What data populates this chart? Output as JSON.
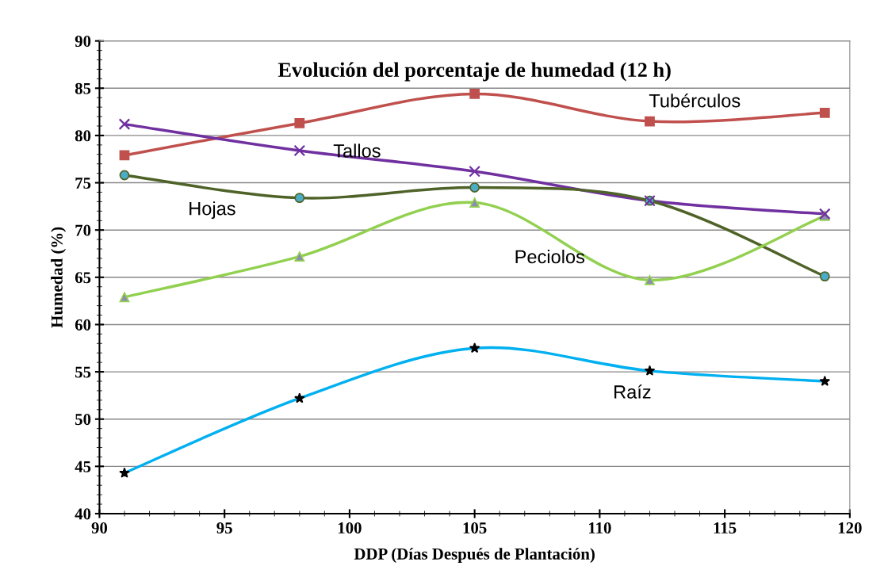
{
  "chart_data": {
    "type": "line",
    "title": "Evolución del porcentaje de humedad (12 h)",
    "xlabel": "DDP (Días Después de Plantación)",
    "ylabel": "Humedad (%)",
    "x": [
      91,
      98,
      105,
      112,
      119
    ],
    "series": [
      {
        "name": "Tubérculos",
        "color": "#c0504d",
        "marker": "square",
        "values": [
          77.9,
          81.3,
          84.4,
          81.5,
          82.4
        ]
      },
      {
        "name": "Tallos",
        "color": "#7030a0",
        "marker": "cross",
        "values": [
          81.2,
          78.4,
          76.2,
          73.1,
          71.7
        ]
      },
      {
        "name": "Hojas",
        "color": "#4f6228",
        "marker": "circle",
        "values": [
          75.8,
          73.4,
          74.5,
          73.1,
          65.1
        ]
      },
      {
        "name": "Peciolos",
        "color": "#92d050",
        "marker": "triangle",
        "values": [
          62.9,
          67.2,
          72.9,
          64.7,
          71.5
        ]
      },
      {
        "name": "Raíz",
        "color": "#00b0f0",
        "marker": "star",
        "values": [
          44.3,
          52.2,
          57.5,
          55.1,
          54.0
        ]
      }
    ],
    "xlim": [
      90,
      120
    ],
    "xticks": [
      90,
      95,
      100,
      105,
      110,
      115,
      120
    ],
    "ylim": [
      40,
      90
    ],
    "yticks": [
      40,
      45,
      50,
      55,
      60,
      65,
      70,
      75,
      80,
      85,
      90
    ],
    "grid": "y",
    "legend": false
  }
}
